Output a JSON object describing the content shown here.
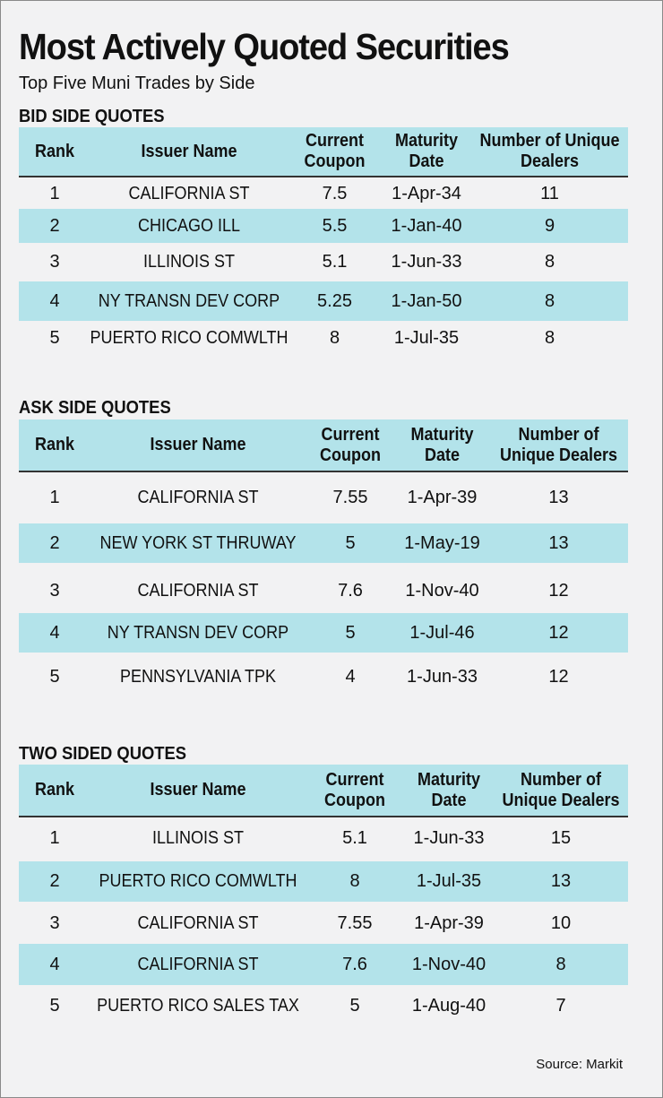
{
  "title": "Most Actively Quoted Securities",
  "subtitle": "Top Five Muni Trades by Side",
  "source": "Source: Markit",
  "colors": {
    "row_shade": "#b3e3ea",
    "background": "#f2f2f3"
  },
  "chart_data": [
    {
      "type": "table",
      "title": "BID SIDE QUOTES",
      "columns": {
        "rank": "Rank",
        "issuer": "Issuer Name",
        "coupon": "Current Coupon",
        "maturity": "Maturity Date",
        "dealers": "Number of Unique Dealers"
      },
      "rows": [
        {
          "rank": "1",
          "issuer": "CALIFORNIA ST",
          "coupon": "7.5",
          "maturity": "1-Apr-34",
          "dealers": "11"
        },
        {
          "rank": "2",
          "issuer": "CHICAGO ILL",
          "coupon": "5.5",
          "maturity": "1-Jan-40",
          "dealers": "9"
        },
        {
          "rank": "3",
          "issuer": "ILLINOIS ST",
          "coupon": "5.1",
          "maturity": "1-Jun-33",
          "dealers": "8"
        },
        {
          "rank": "4",
          "issuer": "NY TRANSN DEV CORP",
          "coupon": "5.25",
          "maturity": "1-Jan-50",
          "dealers": "8"
        },
        {
          "rank": "5",
          "issuer": "PUERTO RICO COMWLTH",
          "coupon": "8",
          "maturity": "1-Jul-35",
          "dealers": "8"
        }
      ]
    },
    {
      "type": "table",
      "title": "ASK SIDE QUOTES",
      "columns": {
        "rank": "Rank",
        "issuer": "Issuer Name",
        "coupon": "Current Coupon",
        "maturity": "Maturity Date",
        "dealers": "Number of Unique Dealers"
      },
      "rows": [
        {
          "rank": "1",
          "issuer": "CALIFORNIA ST",
          "coupon": "7.55",
          "maturity": "1-Apr-39",
          "dealers": "13"
        },
        {
          "rank": "2",
          "issuer": "NEW YORK ST THRUWAY",
          "coupon": "5",
          "maturity": "1-May-19",
          "dealers": "13"
        },
        {
          "rank": "3",
          "issuer": "CALIFORNIA ST",
          "coupon": "7.6",
          "maturity": "1-Nov-40",
          "dealers": "12"
        },
        {
          "rank": "4",
          "issuer": "NY TRANSN DEV CORP",
          "coupon": "5",
          "maturity": "1-Jul-46",
          "dealers": "12"
        },
        {
          "rank": "5",
          "issuer": "PENNSYLVANIA TPK",
          "coupon": "4",
          "maturity": "1-Jun-33",
          "dealers": "12"
        }
      ]
    },
    {
      "type": "table",
      "title": "TWO SIDED QUOTES",
      "columns": {
        "rank": "Rank",
        "issuer": "Issuer Name",
        "coupon": "Current Coupon",
        "maturity": "Maturity Date",
        "dealers": "Number of Unique Dealers"
      },
      "rows": [
        {
          "rank": "1",
          "issuer": "ILLINOIS ST",
          "coupon": "5.1",
          "maturity": "1-Jun-33",
          "dealers": "15"
        },
        {
          "rank": "2",
          "issuer": "PUERTO RICO COMWLTH",
          "coupon": "8",
          "maturity": "1-Jul-35",
          "dealers": "13"
        },
        {
          "rank": "3",
          "issuer": "CALIFORNIA ST",
          "coupon": "7.55",
          "maturity": "1-Apr-39",
          "dealers": "10"
        },
        {
          "rank": "4",
          "issuer": "CALIFORNIA ST",
          "coupon": "7.6",
          "maturity": "1-Nov-40",
          "dealers": "8"
        },
        {
          "rank": "5",
          "issuer": "PUERTO RICO SALES TAX",
          "coupon": "5",
          "maturity": "1-Aug-40",
          "dealers": "7"
        }
      ]
    }
  ]
}
